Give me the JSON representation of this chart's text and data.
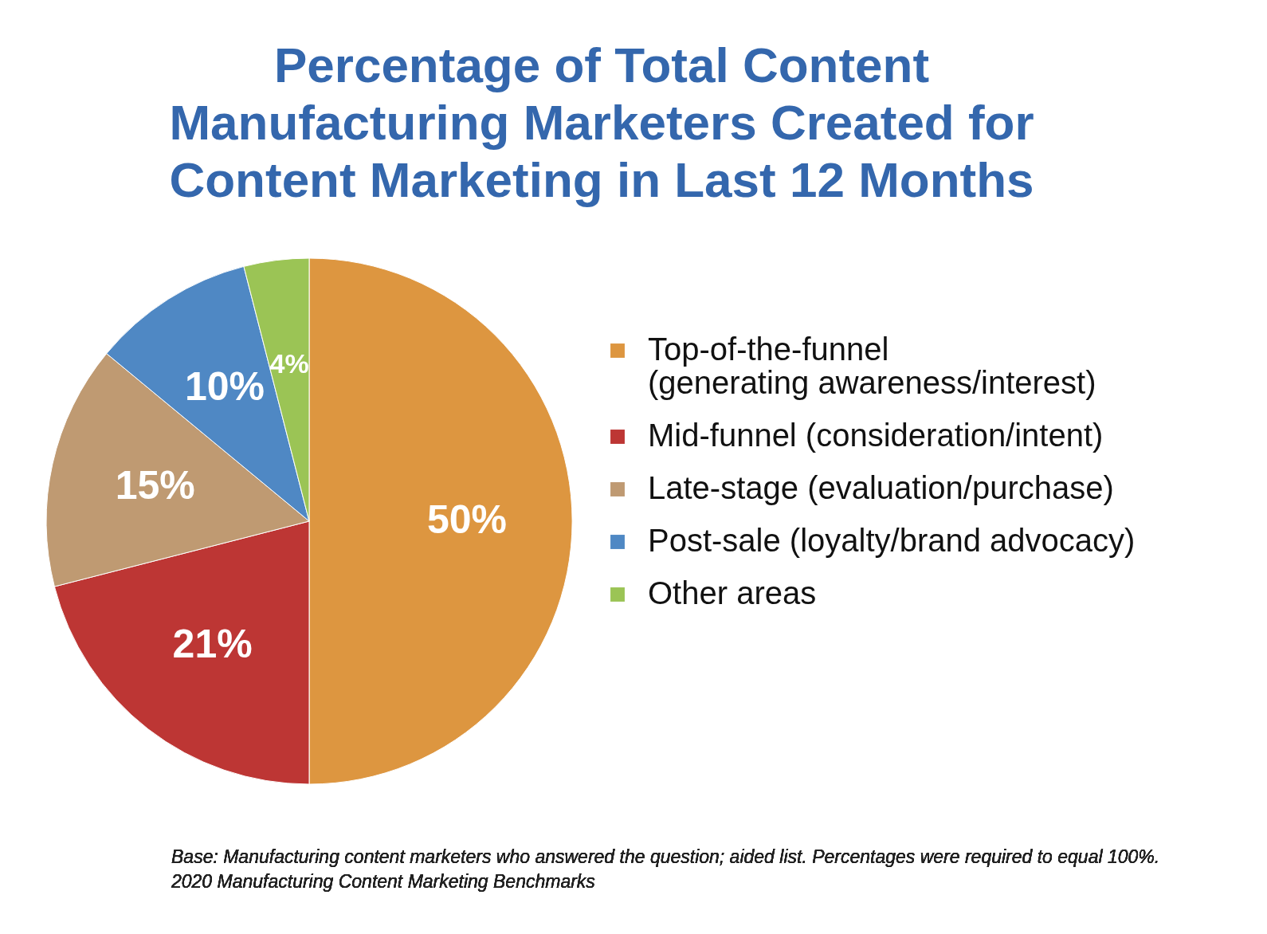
{
  "chart_data": {
    "type": "pie",
    "title": "Percentage of Total Content Manufacturing Marketers Created for Content Marketing in Last 12 Months",
    "categories": [
      "Top-of-the-funnel (generating awareness/interest)",
      "Mid-funnel (consideration/intent)",
      "Late-stage (evaluation/purchase)",
      "Post-sale (loyalty/brand advocacy)",
      "Other areas"
    ],
    "values": [
      50,
      21,
      15,
      10,
      4
    ],
    "value_labels": [
      "50%",
      "21%",
      "15%",
      "10%",
      "4%"
    ],
    "colors": [
      "#dd9640",
      "#bd3634",
      "#bf9a72",
      "#4f88c4",
      "#9bc455"
    ],
    "legend": "right",
    "annotations": [
      "Base: Manufacturing content marketers who answered the question; aided list. Percentages were required to equal 100%.",
      "2020 Manufacturing Content Marketing Benchmarks"
    ]
  }
}
